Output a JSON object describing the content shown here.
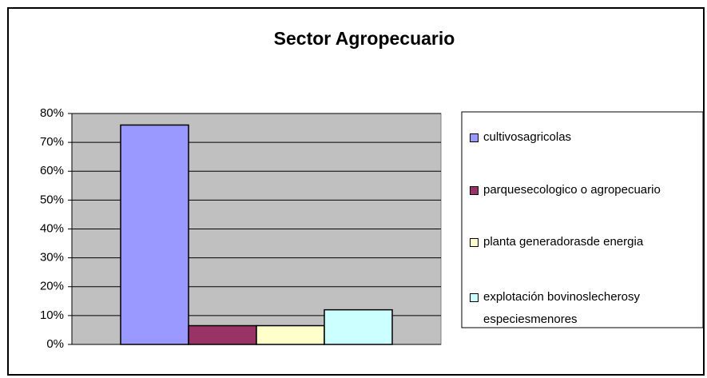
{
  "chart_data": {
    "type": "bar",
    "title": "Sector Agropecuario",
    "categories": [
      null
    ],
    "series": [
      {
        "name": "cultivosagricolas",
        "color": "#9999ff",
        "values": [
          76
        ]
      },
      {
        "name": "parquesecologico o agropecuario",
        "color": "#993366",
        "values": [
          6.5
        ]
      },
      {
        "name": "planta generadorasde energia",
        "color": "#ffffcc",
        "values": [
          6.5
        ]
      },
      {
        "name": "explotación bovinoslecherosy especiesmenores",
        "color": "#ccffff",
        "values": [
          12
        ]
      }
    ],
    "ylim": [
      0,
      80
    ],
    "yticks": [
      {
        "value": 0,
        "label": "0%"
      },
      {
        "value": 10,
        "label": "10%"
      },
      {
        "value": 20,
        "label": "20%"
      },
      {
        "value": 30,
        "label": "30%"
      },
      {
        "value": 40,
        "label": "40%"
      },
      {
        "value": 50,
        "label": "50%"
      },
      {
        "value": 60,
        "label": "60%"
      },
      {
        "value": 70,
        "label": "70%"
      },
      {
        "value": 80,
        "label": "80%"
      }
    ],
    "grid": true,
    "legend": "right"
  }
}
